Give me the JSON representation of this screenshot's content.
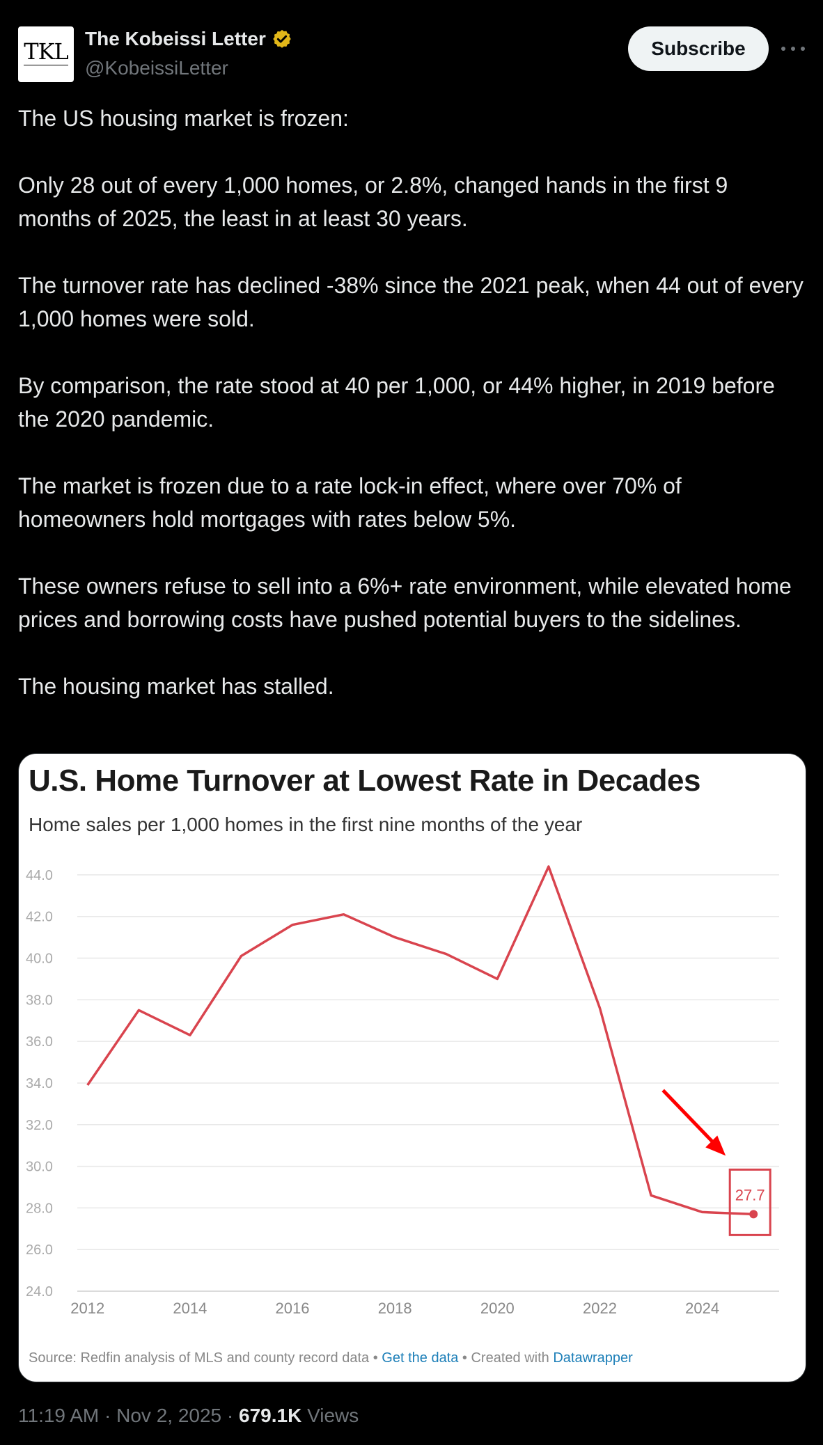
{
  "author": {
    "name": "The Kobeissi Letter",
    "handle": "@KobeissiLetter",
    "avatar_text": "TKL",
    "verified_color": "#e2b719"
  },
  "subscribe_label": "Subscribe",
  "tweet_paragraphs": [
    "The US housing market is frozen:",
    "Only 28 out of every 1,000 homes, or 2.8%, changed hands in the first 9 months of 2025, the least in at least 30 years.",
    "The turnover rate has declined -38% since the 2021 peak, when 44 out of every 1,000 homes were sold.",
    "By comparison, the rate stood at 40 per 1,000, or 44% higher, in 2019 before the 2020 pandemic.",
    "The market is frozen due to a rate lock-in effect, where over 70% of homeowners hold mortgages with rates below 5%.",
    "These owners refuse to sell into a 6%+ rate environment, while elevated home prices and borrowing costs have pushed potential buyers to the sidelines.",
    "The housing market has stalled."
  ],
  "chart_data": {
    "type": "line",
    "title": "U.S. Home Turnover at Lowest Rate in Decades",
    "subtitle": "Home sales per 1,000 homes in the first nine months of the year",
    "x": [
      2012,
      2013,
      2014,
      2015,
      2016,
      2017,
      2018,
      2019,
      2020,
      2021,
      2022,
      2023,
      2024,
      2025
    ],
    "values": [
      33.9,
      37.5,
      36.3,
      40.1,
      41.6,
      42.1,
      41.0,
      40.2,
      39.0,
      44.4,
      37.6,
      28.6,
      27.8,
      27.7
    ],
    "x_ticks": [
      "2012",
      "2014",
      "2016",
      "2018",
      "2020",
      "2022",
      "2024"
    ],
    "y_ticks": [
      "24.0",
      "26.0",
      "28.0",
      "30.0",
      "32.0",
      "34.0",
      "36.0",
      "38.0",
      "40.0",
      "42.0",
      "44.0"
    ],
    "ylim": [
      24,
      44.8
    ],
    "xlim": [
      2011.8,
      2025.5
    ],
    "annotation": "27.7",
    "line_color": "#d9444e",
    "arrow_color": "#ff0000",
    "source_text": "Source: Redfin analysis of MLS and county record data",
    "source_sep1": " • ",
    "source_link1": "Get the data",
    "source_sep2": " • Created with ",
    "source_link2": "Datawrapper"
  },
  "meta": {
    "time": "11:19 AM",
    "sep": " · ",
    "date": "Nov 2, 2025",
    "views_count": "679.1K",
    "views_label": "Views"
  }
}
